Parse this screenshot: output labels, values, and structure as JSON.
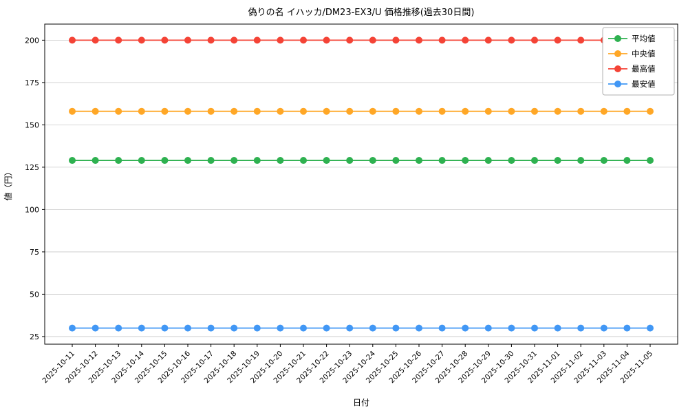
{
  "chart_data": {
    "type": "line",
    "title": "偽りの名 イハッカ/DM23-EX3/U 価格推移(過去30日間)",
    "xlabel": "日付",
    "ylabel": "値（円）",
    "grid": true,
    "legend_position": "upper right",
    "ylim": [
      20.5,
      209.5
    ],
    "yticks": [
      25,
      50,
      75,
      100,
      125,
      150,
      175,
      200
    ],
    "x": [
      "2025-10-11",
      "2025-10-12",
      "2025-10-13",
      "2025-10-14",
      "2025-10-15",
      "2025-10-16",
      "2025-10-17",
      "2025-10-18",
      "2025-10-19",
      "2025-10-20",
      "2025-10-21",
      "2025-10-22",
      "2025-10-23",
      "2025-10-24",
      "2025-10-25",
      "2025-10-26",
      "2025-10-27",
      "2025-10-28",
      "2025-10-29",
      "2025-10-30",
      "2025-10-31",
      "2025-11-01",
      "2025-11-02",
      "2025-11-03",
      "2025-11-04",
      "2025-11-05"
    ],
    "series": [
      {
        "name": "平均値",
        "color": "#2eb150",
        "values": [
          129,
          129,
          129,
          129,
          129,
          129,
          129,
          129,
          129,
          129,
          129,
          129,
          129,
          129,
          129,
          129,
          129,
          129,
          129,
          129,
          129,
          129,
          129,
          129,
          129,
          129
        ]
      },
      {
        "name": "中央値",
        "color": "#ffa726",
        "values": [
          158,
          158,
          158,
          158,
          158,
          158,
          158,
          158,
          158,
          158,
          158,
          158,
          158,
          158,
          158,
          158,
          158,
          158,
          158,
          158,
          158,
          158,
          158,
          158,
          158,
          158
        ]
      },
      {
        "name": "最高値",
        "color": "#f44336",
        "values": [
          200,
          200,
          200,
          200,
          200,
          200,
          200,
          200,
          200,
          200,
          200,
          200,
          200,
          200,
          200,
          200,
          200,
          200,
          200,
          200,
          200,
          200,
          200,
          200,
          200,
          200
        ]
      },
      {
        "name": "最安値",
        "color": "#4197f5",
        "values": [
          30,
          30,
          30,
          30,
          30,
          30,
          30,
          30,
          30,
          30,
          30,
          30,
          30,
          30,
          30,
          30,
          30,
          30,
          30,
          30,
          30,
          30,
          30,
          30,
          30,
          30
        ]
      }
    ]
  }
}
